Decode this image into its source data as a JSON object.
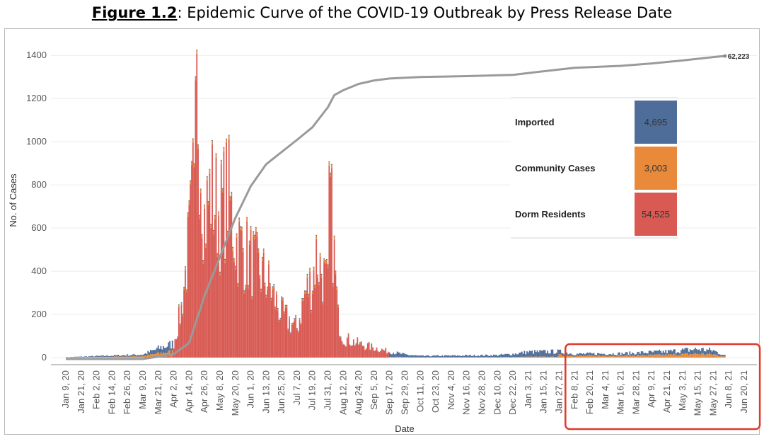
{
  "figure": {
    "label": "Figure 1.2",
    "title": ": Epidemic Curve of the COVID-19 Outbreak by Press Release Date"
  },
  "chart_data": {
    "type": "bar",
    "stacked": true,
    "xlabel": "Date",
    "ylabel": "No. of Cases",
    "ylim": [
      0,
      1450
    ],
    "yticks": [
      0,
      200,
      400,
      600,
      800,
      1000,
      1200,
      1400
    ],
    "xticks": [
      "Jan 9, 20",
      "Jan 21, 20",
      "Feb 2, 20",
      "Feb 14, 20",
      "Feb 26, 20",
      "Mar 9, 20",
      "Mar 21, 20",
      "Apr 2, 20",
      "Apr 14, 20",
      "Apr 26, 20",
      "May 8, 20",
      "May 20, 20",
      "Jun 1, 20",
      "Jun 13, 20",
      "Jun 25, 20",
      "Jul 7, 20",
      "Jul 19, 20",
      "Jul 31, 20",
      "Aug 12, 20",
      "Aug 24, 20",
      "Sep 5, 20",
      "Sep 17, 20",
      "Sep 29, 20",
      "Oct 11, 20",
      "Oct 23, 20",
      "Nov 4, 20",
      "Nov 16, 20",
      "Nov 28, 20",
      "Dec 10, 20",
      "Dec 22, 20",
      "Jan 3, 21",
      "Jan 15, 21",
      "Jan 27, 21",
      "Feb 8, 21",
      "Feb 20, 21",
      "Mar 4, 21",
      "Mar 16, 21",
      "Mar 28, 21",
      "Apr 9, 21",
      "Apr 21, 21",
      "May 3, 21",
      "May 15, 21",
      "May 27, 21",
      "Jun 8, 21",
      "Jun 20, 21"
    ],
    "grid": true,
    "legend_position": "right",
    "series": [
      {
        "name": "Imported",
        "total": "4,695",
        "color": "#4e6e99"
      },
      {
        "name": "Community Cases",
        "total": "3,003",
        "color": "#e98a3a"
      },
      {
        "name": "Dorm Residents",
        "total": "54,525",
        "color": "#d85a53"
      }
    ],
    "bar_profile": [
      {
        "date": "Jan 9, 20",
        "total": 2
      },
      {
        "date": "Mar 9, 20",
        "total": 15
      },
      {
        "date": "Mar 21, 20",
        "total": 45
      },
      {
        "date": "Apr 2, 20",
        "total": 70
      },
      {
        "date": "Apr 8, 20",
        "total": 250
      },
      {
        "date": "Apr 14, 20",
        "total": 600
      },
      {
        "date": "Apr 18, 20",
        "total": 900
      },
      {
        "date": "Apr 20, 20",
        "total": 1426
      },
      {
        "date": "Apr 26, 20",
        "total": 700
      },
      {
        "date": "May 1, 20",
        "total": 850
      },
      {
        "date": "May 8, 20",
        "total": 720
      },
      {
        "date": "May 14, 20",
        "total": 850
      },
      {
        "date": "May 20, 20",
        "total": 600
      },
      {
        "date": "Jun 1, 20",
        "total": 500
      },
      {
        "date": "Jun 13, 20",
        "total": 400
      },
      {
        "date": "Jun 25, 20",
        "total": 220
      },
      {
        "date": "Jul 7, 20",
        "total": 150
      },
      {
        "date": "Jul 13, 20",
        "total": 320
      },
      {
        "date": "Jul 19, 20",
        "total": 400
      },
      {
        "date": "Jul 22, 20",
        "total": 520
      },
      {
        "date": "Jul 31, 20",
        "total": 350
      },
      {
        "date": "Aug 1, 20",
        "total": 909
      },
      {
        "date": "Aug 8, 20",
        "total": 200
      },
      {
        "date": "Aug 12, 20",
        "total": 100
      },
      {
        "date": "Aug 24, 20",
        "total": 70
      },
      {
        "date": "Sep 5, 20",
        "total": 50
      },
      {
        "date": "Sep 17, 20",
        "total": 30
      },
      {
        "date": "Sep 29, 20",
        "total": 15
      },
      {
        "date": "Oct 11, 20",
        "total": 8
      },
      {
        "date": "Dec 10, 20",
        "total": 12
      },
      {
        "date": "Dec 22, 20",
        "total": 18
      },
      {
        "date": "Jan 3, 21",
        "total": 28
      },
      {
        "date": "Jan 27, 21",
        "total": 30
      },
      {
        "date": "Feb 8, 21",
        "total": 18
      },
      {
        "date": "Mar 16, 21",
        "total": 20
      },
      {
        "date": "Apr 21, 21",
        "total": 30
      },
      {
        "date": "May 15, 21",
        "total": 42
      },
      {
        "date": "May 27, 21",
        "total": 35
      },
      {
        "date": "Jun 5, 21",
        "total": 10
      }
    ],
    "cumulative": [
      {
        "date": "Jan 9, 20",
        "value": 0
      },
      {
        "date": "Mar 9, 20",
        "value": 0
      },
      {
        "date": "Apr 2, 20",
        "value": 1000
      },
      {
        "date": "Apr 14, 20",
        "value": 3300
      },
      {
        "date": "Apr 26, 20",
        "value": 13000
      },
      {
        "date": "May 8, 20",
        "value": 21000
      },
      {
        "date": "May 20, 20",
        "value": 29000
      },
      {
        "date": "Jun 1, 20",
        "value": 35500
      },
      {
        "date": "Jun 13, 20",
        "value": 40000
      },
      {
        "date": "Jun 25, 20",
        "value": 42500
      },
      {
        "date": "Jul 7, 20",
        "value": 45000
      },
      {
        "date": "Jul 19, 20",
        "value": 47600
      },
      {
        "date": "Jul 31, 20",
        "value": 51700
      },
      {
        "date": "Aug 5, 20",
        "value": 54200
      },
      {
        "date": "Aug 12, 20",
        "value": 55200
      },
      {
        "date": "Aug 24, 20",
        "value": 56500
      },
      {
        "date": "Sep 5, 20",
        "value": 57200
      },
      {
        "date": "Sep 17, 20",
        "value": 57600
      },
      {
        "date": "Oct 11, 20",
        "value": 57900
      },
      {
        "date": "Nov 16, 20",
        "value": 58100
      },
      {
        "date": "Dec 22, 20",
        "value": 58350
      },
      {
        "date": "Jan 15, 21",
        "value": 59100
      },
      {
        "date": "Feb 8, 21",
        "value": 59800
      },
      {
        "date": "Mar 16, 21",
        "value": 60200
      },
      {
        "date": "Apr 9, 21",
        "value": 60700
      },
      {
        "date": "May 3, 21",
        "value": 61300
      },
      {
        "date": "May 27, 21",
        "value": 62000
      },
      {
        "date": "Jun 5, 21",
        "value": 62223
      }
    ],
    "cumulative_end_label": "62,223",
    "highlight_range": [
      "Feb 8, 21",
      "Jun 20, 21"
    ]
  }
}
